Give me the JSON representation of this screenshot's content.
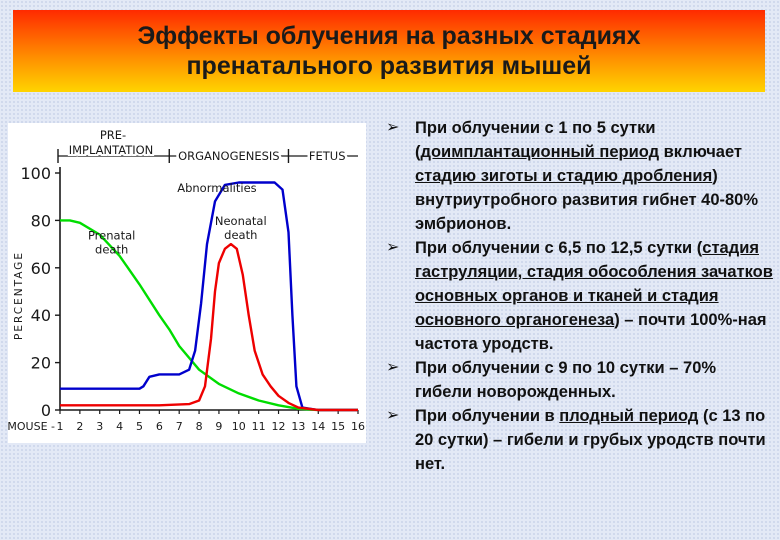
{
  "slide": {
    "title_line1": "Эффекты облучения на разных стадиях",
    "title_line2": "пренатального развития мышей"
  },
  "bullets": [
    {
      "parts": [
        {
          "text": "При облучении с 1 по 5 сутки (",
          "u": false
        },
        {
          "text": "доимплантационный период",
          "u": true
        },
        {
          "text": " включает ",
          "u": false
        },
        {
          "text": "стадию зиготы и стадию дробления",
          "u": true
        },
        {
          "text": ") внутриутробного развития гибнет 40-80% эмбрионов.",
          "u": false
        }
      ]
    },
    {
      "parts": [
        {
          "text": "При облучении с 6,5 по 12,5 сутки (",
          "u": false
        },
        {
          "text": "стадия гаструляции, стадия обособления зачатков основных органов и тканей и стадия основного органогенеза",
          "u": true
        },
        {
          "text": ") – почти 100%-ная частота уродств.",
          "u": false
        }
      ]
    },
    {
      "parts": [
        {
          "text": "При облучении с 9 по 10 сутки – 70% гибели новорожденных.",
          "u": false
        }
      ]
    },
    {
      "parts": [
        {
          "text": "При облучении в ",
          "u": false
        },
        {
          "text": "плодный период",
          "u": true
        },
        {
          "text": " (с 13 по 20 сутки) – гибели и грубых уродств почти нет.",
          "u": false
        }
      ]
    }
  ],
  "chart_data": {
    "type": "line",
    "ylabel": "PERCENTAGE",
    "ylim": [
      0,
      100
    ],
    "yticks": [
      "0",
      "20",
      "40",
      "60",
      "80",
      "100"
    ],
    "xlim": [
      1,
      16
    ],
    "x_axis_prefix": "MOUSE -",
    "xticks": [
      "1",
      "2",
      "3",
      "4",
      "5",
      "6",
      "7",
      "8",
      "9",
      "10",
      "11",
      "12",
      "13",
      "14",
      "15",
      "16"
    ],
    "stages": [
      {
        "label": "PRE-",
        "from": 1,
        "to": 6.5,
        "boundary_label": "IMPLANTATION"
      },
      {
        "label": "ORGANOGENESIS",
        "from": 6.5,
        "to": 12.5
      },
      {
        "label": "FETUS",
        "from": 12.5,
        "to": 16
      }
    ],
    "series": [
      {
        "name": "Prenatal death",
        "label_lines": [
          "Prenatal",
          "death"
        ],
        "label_at": [
          3.6,
          72
        ],
        "color": "#00dd00",
        "points": [
          [
            1,
            80
          ],
          [
            1.5,
            80
          ],
          [
            2,
            79
          ],
          [
            3,
            74
          ],
          [
            4,
            65
          ],
          [
            5,
            53
          ],
          [
            6,
            40
          ],
          [
            6.5,
            34
          ],
          [
            7,
            27
          ],
          [
            8,
            17
          ],
          [
            9,
            11
          ],
          [
            10,
            7
          ],
          [
            11,
            4
          ],
          [
            12,
            2
          ],
          [
            13,
            0.5
          ],
          [
            14,
            0
          ],
          [
            16,
            0
          ]
        ]
      },
      {
        "name": "Abnormalities",
        "label_lines": [
          "Abnormalities"
        ],
        "label_at": [
          8.9,
          92
        ],
        "color": "#0000cc",
        "points": [
          [
            1,
            9
          ],
          [
            5,
            9
          ],
          [
            5.2,
            10
          ],
          [
            5.5,
            14
          ],
          [
            6,
            15
          ],
          [
            7,
            15
          ],
          [
            7.5,
            17
          ],
          [
            7.8,
            25
          ],
          [
            8.1,
            45
          ],
          [
            8.4,
            70
          ],
          [
            8.8,
            88
          ],
          [
            9.3,
            95
          ],
          [
            10,
            96
          ],
          [
            11,
            96
          ],
          [
            11.8,
            96
          ],
          [
            12.2,
            93
          ],
          [
            12.5,
            75
          ],
          [
            12.7,
            40
          ],
          [
            12.9,
            10
          ],
          [
            13.2,
            1
          ],
          [
            14,
            0
          ],
          [
            16,
            0
          ]
        ]
      },
      {
        "name": "Neonatal death",
        "label_lines": [
          "Neonatal",
          "death"
        ],
        "label_at": [
          10.1,
          78
        ],
        "color": "#ee0000",
        "points": [
          [
            1,
            2
          ],
          [
            6,
            2
          ],
          [
            7.5,
            2.5
          ],
          [
            8,
            4
          ],
          [
            8.3,
            10
          ],
          [
            8.6,
            30
          ],
          [
            8.8,
            50
          ],
          [
            9,
            62
          ],
          [
            9.3,
            68
          ],
          [
            9.6,
            70
          ],
          [
            9.9,
            68
          ],
          [
            10.2,
            57
          ],
          [
            10.5,
            40
          ],
          [
            10.8,
            25
          ],
          [
            11.2,
            15
          ],
          [
            11.6,
            10
          ],
          [
            12,
            6
          ],
          [
            12.5,
            3
          ],
          [
            13,
            1
          ],
          [
            14,
            0
          ],
          [
            16,
            0
          ]
        ]
      }
    ]
  }
}
